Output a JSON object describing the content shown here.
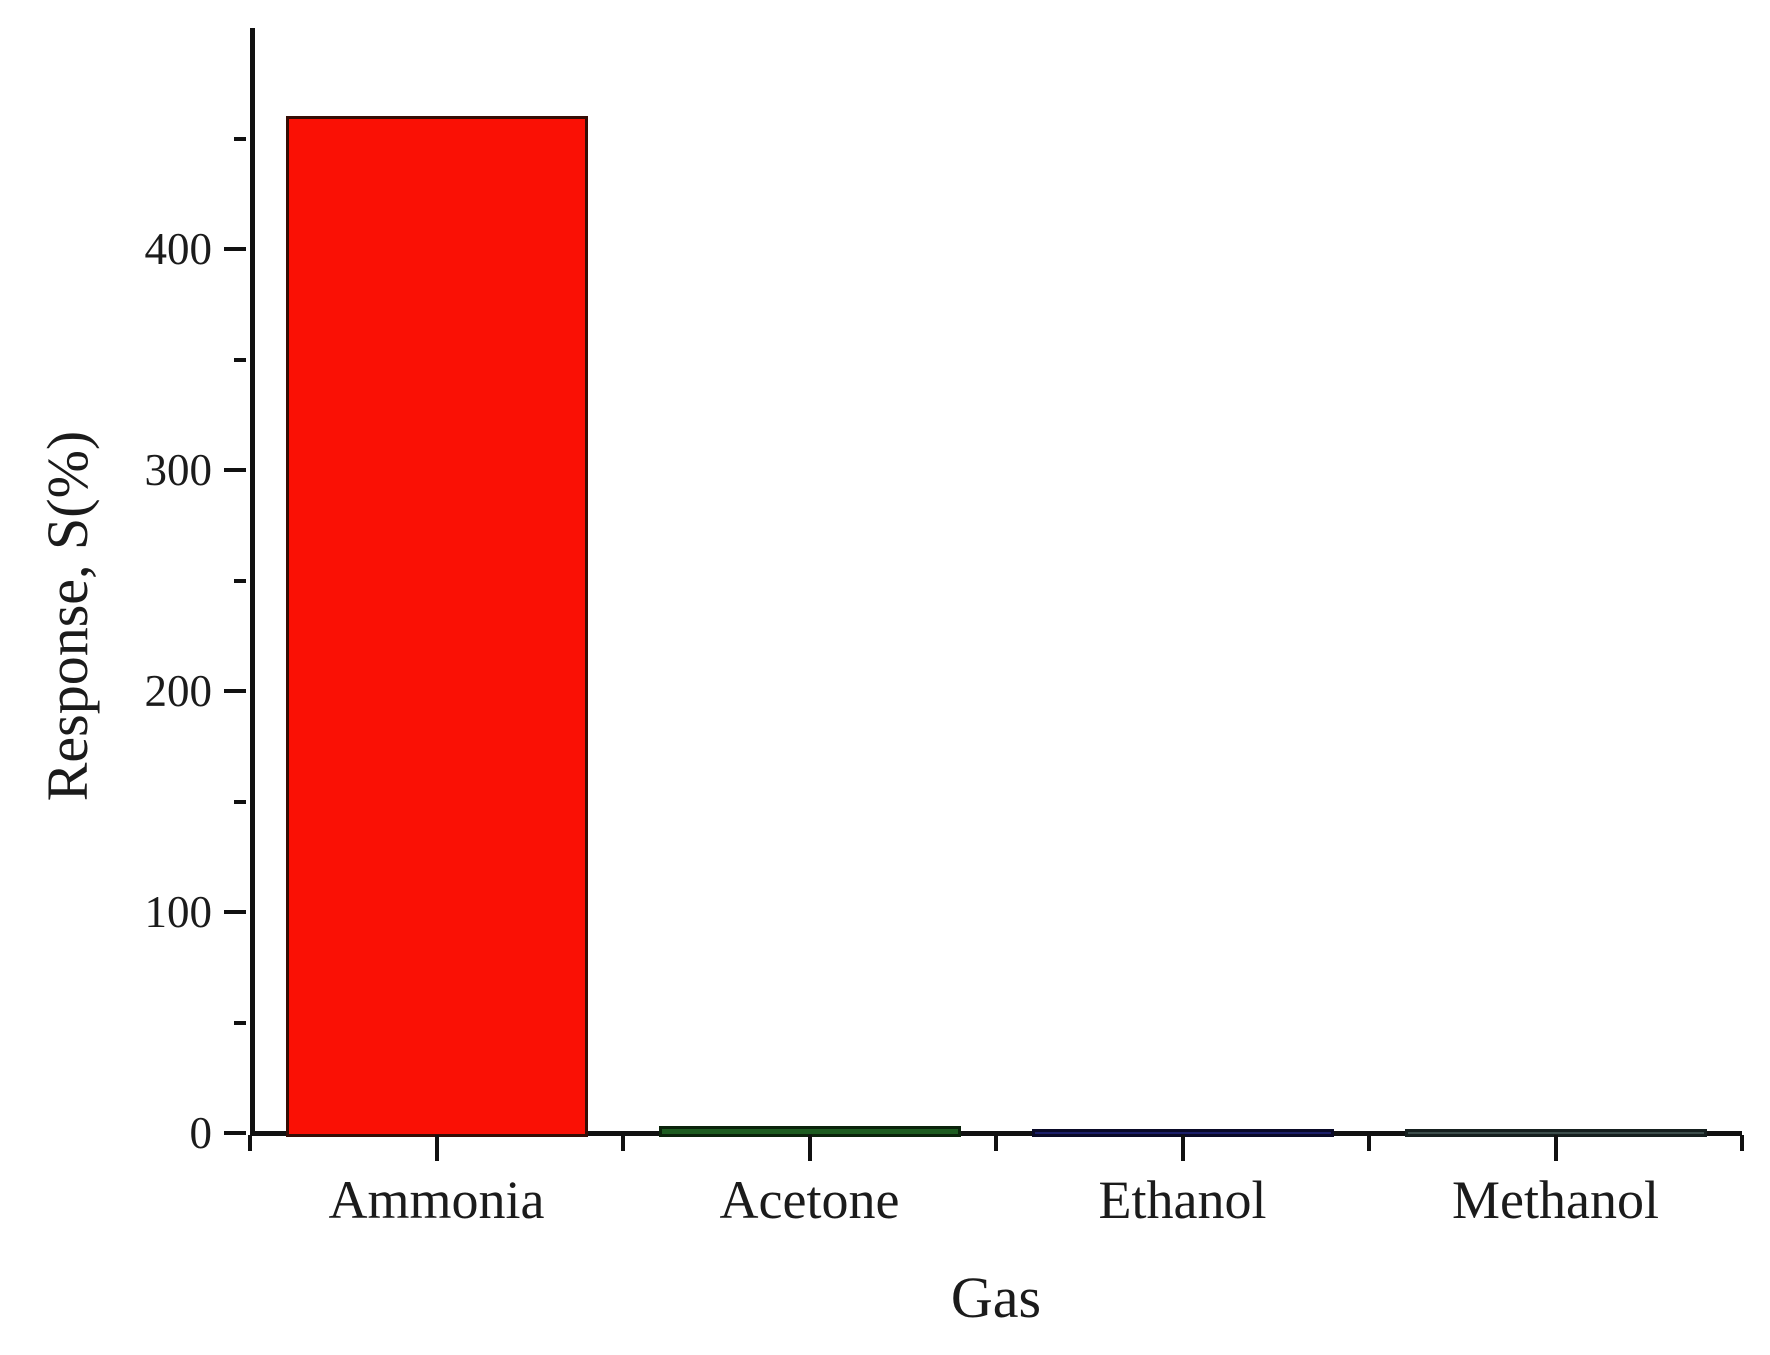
{
  "chart_data": {
    "type": "bar",
    "title": "",
    "xlabel": "Gas",
    "ylabel": "Response, S(%)",
    "categories": [
      "Ammonia",
      "Acetone",
      "Ethanol",
      "Methanol"
    ],
    "values": [
      460,
      3,
      2,
      2
    ],
    "bar_colors": [
      "#fa1005",
      "#1d5c20",
      "#1c1f6b",
      "#3d4e4c"
    ],
    "bar_border_colors": [
      "#360d05",
      "#0b230b",
      "#0a0a28",
      "#16201f"
    ],
    "axis_color": "#111111",
    "text_color": "#1b1b1b",
    "background_color": "#ffffff",
    "ylim": [
      0,
      500
    ],
    "yticks_major": [
      0,
      100,
      200,
      300,
      400
    ],
    "yticks_minor": [
      50,
      150,
      250,
      350,
      450
    ],
    "grid": false,
    "legend": null
  }
}
